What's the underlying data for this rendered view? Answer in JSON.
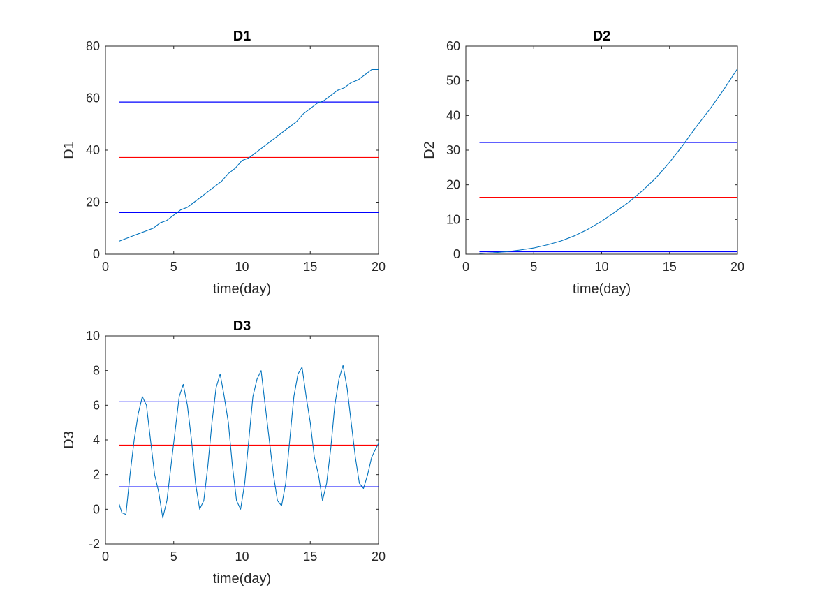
{
  "figure": {
    "background": "#ffffff"
  },
  "chart_data": [
    {
      "type": "line",
      "title": "D1",
      "xlabel": "time(day)",
      "ylabel": "D1",
      "xlim": [
        0,
        20
      ],
      "ylim": [
        0,
        80
      ],
      "xticks": [
        0,
        5,
        10,
        15,
        20
      ],
      "yticks": [
        0,
        20,
        40,
        60,
        80
      ],
      "grid": false,
      "series": [
        {
          "color": "#0072BD",
          "x": [
            1,
            1.5,
            2,
            2.5,
            3,
            3.5,
            4,
            4.5,
            5,
            5.5,
            6,
            6.5,
            7,
            7.5,
            8,
            8.5,
            9,
            9.5,
            10,
            10.5,
            11,
            11.5,
            12,
            12.5,
            13,
            13.5,
            14,
            14.5,
            15,
            15.5,
            16,
            16.5,
            17,
            17.5,
            18,
            18.5,
            19,
            19.5,
            20
          ],
          "y": [
            5,
            6,
            7,
            8,
            9,
            10,
            12,
            13,
            15,
            17,
            18,
            20,
            22,
            24,
            26,
            28,
            31,
            33,
            36,
            37,
            39,
            41,
            43,
            45,
            47,
            49,
            51,
            54,
            56,
            58,
            59,
            61,
            63,
            64,
            66,
            67,
            69,
            71,
            71
          ]
        }
      ],
      "reference_lines": [
        {
          "y": 58.5,
          "color": "#0000FF"
        },
        {
          "y": 37.2,
          "color": "#FF0000"
        },
        {
          "y": 16.0,
          "color": "#0000FF"
        }
      ]
    },
    {
      "type": "line",
      "title": "D2",
      "xlabel": "time(day)",
      "ylabel": "D2",
      "xlim": [
        0,
        20
      ],
      "ylim": [
        0,
        60
      ],
      "xticks": [
        0,
        5,
        10,
        15,
        20
      ],
      "yticks": [
        0,
        10,
        20,
        30,
        40,
        50,
        60
      ],
      "grid": false,
      "series": [
        {
          "color": "#0072BD",
          "x": [
            1,
            2,
            3,
            4,
            5,
            6,
            7,
            8,
            9,
            10,
            11,
            12,
            13,
            14,
            15,
            16,
            17,
            18,
            19,
            20
          ],
          "y": [
            0.2,
            0.4,
            0.7,
            1.2,
            1.8,
            2.7,
            3.8,
            5.3,
            7.2,
            9.5,
            12.2,
            15.0,
            18.3,
            22.0,
            26.5,
            31.5,
            36.9,
            42.0,
            47.5,
            53.5
          ]
        }
      ],
      "reference_lines": [
        {
          "y": 32.2,
          "color": "#0000FF"
        },
        {
          "y": 16.4,
          "color": "#FF0000"
        },
        {
          "y": 0.7,
          "color": "#0000FF"
        }
      ]
    },
    {
      "type": "line",
      "title": "D3",
      "xlabel": "time(day)",
      "ylabel": "D3",
      "xlim": [
        0,
        20
      ],
      "ylim": [
        -2,
        10
      ],
      "xticks": [
        0,
        5,
        10,
        15,
        20
      ],
      "yticks": [
        -2,
        0,
        2,
        4,
        6,
        8,
        10
      ],
      "grid": false,
      "series": [
        {
          "color": "#0072BD",
          "x": [
            1,
            1.2,
            1.5,
            1.8,
            2.1,
            2.4,
            2.7,
            3.0,
            3.3,
            3.6,
            3.9,
            4.2,
            4.5,
            4.8,
            5.1,
            5.4,
            5.7,
            6.0,
            6.3,
            6.6,
            6.9,
            7.2,
            7.5,
            7.8,
            8.1,
            8.4,
            8.7,
            9.0,
            9.3,
            9.6,
            9.9,
            10.2,
            10.5,
            10.8,
            11.1,
            11.4,
            11.7,
            12.0,
            12.3,
            12.6,
            12.9,
            13.2,
            13.5,
            13.8,
            14.1,
            14.4,
            14.7,
            15.0,
            15.3,
            15.6,
            15.9,
            16.2,
            16.5,
            16.8,
            17.1,
            17.4,
            17.7,
            18.0,
            18.3,
            18.6,
            18.9,
            19.2,
            19.5,
            19.8,
            20
          ],
          "y": [
            0.3,
            -0.2,
            -0.3,
            2.0,
            4.0,
            5.5,
            6.5,
            6.0,
            4.0,
            2.0,
            1.0,
            -0.5,
            0.5,
            2.5,
            4.5,
            6.5,
            7.2,
            6.0,
            4.0,
            1.5,
            0.0,
            0.5,
            2.5,
            5.0,
            7.0,
            7.8,
            6.5,
            5.0,
            2.5,
            0.5,
            0.0,
            1.5,
            4.0,
            6.5,
            7.5,
            8.0,
            6.0,
            4.0,
            2.0,
            0.5,
            0.2,
            1.5,
            4.0,
            6.5,
            7.8,
            8.2,
            6.5,
            5.0,
            3.0,
            2.0,
            0.5,
            1.5,
            3.5,
            6.0,
            7.5,
            8.3,
            7.0,
            5.0,
            3.0,
            1.5,
            1.2,
            2.0,
            3.0,
            3.5,
            3.8
          ]
        }
      ],
      "reference_lines": [
        {
          "y": 6.2,
          "color": "#0000FF"
        },
        {
          "y": 3.7,
          "color": "#FF0000"
        },
        {
          "y": 1.3,
          "color": "#0000FF"
        }
      ]
    }
  ]
}
